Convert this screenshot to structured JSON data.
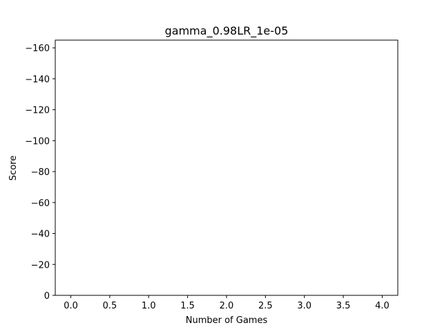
{
  "chart_data": {
    "type": "line",
    "title": "gamma_0.98LR_1e-05",
    "xlabel": "Number of Games",
    "ylabel": "Score",
    "xlim": [
      -0.2,
      4.2
    ],
    "ylim": [
      0,
      -165
    ],
    "y_axis_inverted": true,
    "grid": false,
    "x_ticks": [
      {
        "value": 0.0,
        "label": "0.0"
      },
      {
        "value": 0.5,
        "label": "0.5"
      },
      {
        "value": 1.0,
        "label": "1.0"
      },
      {
        "value": 1.5,
        "label": "1.5"
      },
      {
        "value": 2.0,
        "label": "2.0"
      },
      {
        "value": 2.5,
        "label": "2.5"
      },
      {
        "value": 3.0,
        "label": "3.0"
      },
      {
        "value": 3.5,
        "label": "3.5"
      },
      {
        "value": 4.0,
        "label": "4.0"
      }
    ],
    "y_ticks": [
      {
        "value": 0,
        "label": "0"
      },
      {
        "value": -20,
        "label": "−20"
      },
      {
        "value": -40,
        "label": "−40"
      },
      {
        "value": -60,
        "label": "−60"
      },
      {
        "value": -80,
        "label": "−80"
      },
      {
        "value": -100,
        "label": "−100"
      },
      {
        "value": -120,
        "label": "−120"
      },
      {
        "value": -140,
        "label": "−140"
      },
      {
        "value": -160,
        "label": "−160"
      }
    ],
    "series": [
      {
        "x": [],
        "y": [],
        "color": "#1f77b4"
      }
    ]
  }
}
